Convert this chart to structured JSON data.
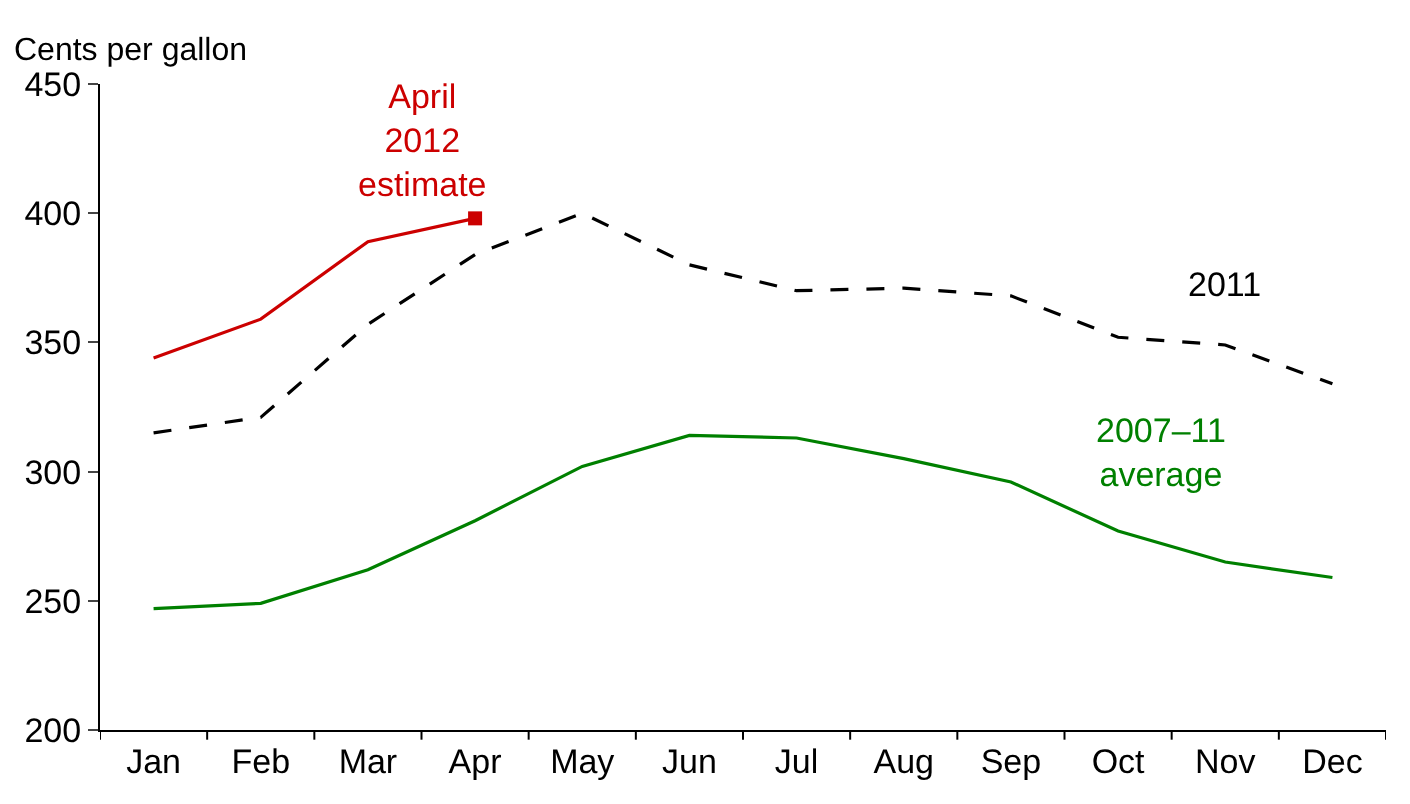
{
  "chart_data": {
    "type": "line",
    "ylabel": "Cents per gallon",
    "categories": [
      "Jan",
      "Feb",
      "Mar",
      "Apr",
      "May",
      "Jun",
      "Jul",
      "Aug",
      "Sep",
      "Oct",
      "Nov",
      "Dec"
    ],
    "series": [
      {
        "name": "April 2012 estimate",
        "color": "#cc0000",
        "line_style": "solid",
        "values": [
          344,
          359,
          389,
          398,
          null,
          null,
          null,
          null,
          null,
          null,
          null,
          null
        ]
      },
      {
        "type": "scatter",
        "color": "#cc0000",
        "marker": "square",
        "values": [
          null,
          null,
          null,
          398,
          null,
          null,
          null,
          null,
          null,
          null,
          null,
          null
        ]
      },
      {
        "name": "2011",
        "color": "#000000",
        "line_style": "dashed",
        "values": [
          315,
          321,
          357,
          384,
          400,
          380,
          370,
          371,
          368,
          352,
          349,
          334
        ]
      },
      {
        "name": "2007–11 average",
        "color": "#008000",
        "line_style": "solid",
        "values": [
          247,
          249,
          262,
          281,
          302,
          314,
          313,
          305,
          296,
          277,
          265,
          259
        ]
      }
    ],
    "ylim": [
      200,
      450
    ],
    "yticks": [
      200,
      250,
      300,
      350,
      400,
      450
    ],
    "grid": false,
    "legend": false
  }
}
